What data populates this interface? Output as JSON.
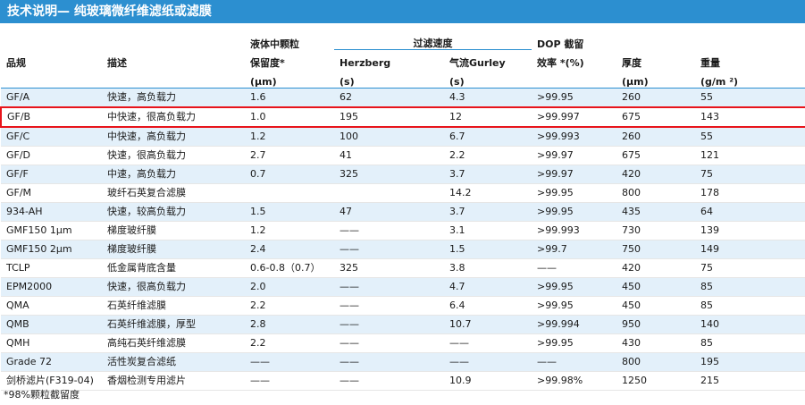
{
  "title": "技术说明— 纯玻璃微纤维滤纸或滤膜",
  "header": {
    "grade": "品规",
    "description": "描述",
    "particle_line1": "液体中颗粒",
    "particle_line2": "保留度*",
    "particle_unit": "(μm)",
    "flow_group": "过滤速度",
    "herzberg": "Herzberg",
    "herzberg_unit": "(s)",
    "gurley": "气流Gurley",
    "gurley_unit": "(s)",
    "dop_line1": "DOP 截留",
    "dop_line2": "效率 *(%)",
    "thickness": "厚度",
    "thickness_unit": "(μm)",
    "weight": "重量",
    "weight_unit": "(g/m ²)"
  },
  "rows": [
    [
      "GF/A",
      "快速，高负载力",
      "1.6",
      "62",
      "4.3",
      ">99.95",
      "260",
      "55"
    ],
    [
      "GF/B",
      "中快速，很高负载力",
      "1.0",
      "195",
      "12",
      ">99.997",
      "675",
      "143"
    ],
    [
      "GF/C",
      "中快速，高负载力",
      "1.2",
      "100",
      "6.7",
      ">99.993",
      "260",
      "55"
    ],
    [
      "GF/D",
      "快速，很高负载力",
      "2.7",
      "41",
      "2.2",
      ">99.97",
      "675",
      "121"
    ],
    [
      "GF/F",
      "中速，高负载力",
      "0.7",
      "325",
      "3.7",
      ">99.97",
      "420",
      "75"
    ],
    [
      "GF/M",
      "玻纤石英复合滤膜",
      "",
      "",
      "14.2",
      ">99.95",
      "800",
      "178"
    ],
    [
      "934-AH",
      "快速，较高负载力",
      "1.5",
      "47",
      "3.7",
      ">99.95",
      "435",
      "64"
    ],
    [
      "GMF150 1μm",
      "梯度玻纤膜",
      "1.2",
      "——",
      "3.1",
      ">99.993",
      "730",
      "139"
    ],
    [
      "GMF150 2μm",
      "梯度玻纤膜",
      "2.4",
      "——",
      "1.5",
      ">99.7",
      "750",
      "149"
    ],
    [
      "TCLP",
      "低金属背底含量",
      "0.6-0.8（0.7）",
      "325",
      "3.8",
      "——",
      "420",
      "75"
    ],
    [
      "EPM2000",
      "快速，很高负载力",
      "2.0",
      "——",
      "4.7",
      ">99.95",
      "450",
      "85"
    ],
    [
      "QMA",
      "石英纤维滤膜",
      "2.2",
      "——",
      "6.4",
      ">99.95",
      "450",
      "85"
    ],
    [
      "QMB",
      "石英纤维滤膜，厚型",
      "2.8",
      "——",
      "10.7",
      ">99.994",
      "950",
      "140"
    ],
    [
      "QMH",
      "高纯石英纤维滤膜",
      "2.2",
      "——",
      "——",
      ">99.95",
      "430",
      "85"
    ],
    [
      "Grade 72",
      "活性炭复合滤纸",
      "——",
      "——",
      "——",
      "——",
      "800",
      "195"
    ],
    [
      "剑桥滤片(F319-04)",
      "香烟检测专用滤片",
      "——",
      "——",
      "10.9",
      ">99.98%",
      "1250",
      "215"
    ]
  ],
  "highlighted_row": "GF/B",
  "footnote": "*98%颗粒截留度",
  "colors": {
    "title_bg": "#2c8fd0",
    "stripe": "#e3f0fa",
    "highlight_border": "#e8141b"
  }
}
